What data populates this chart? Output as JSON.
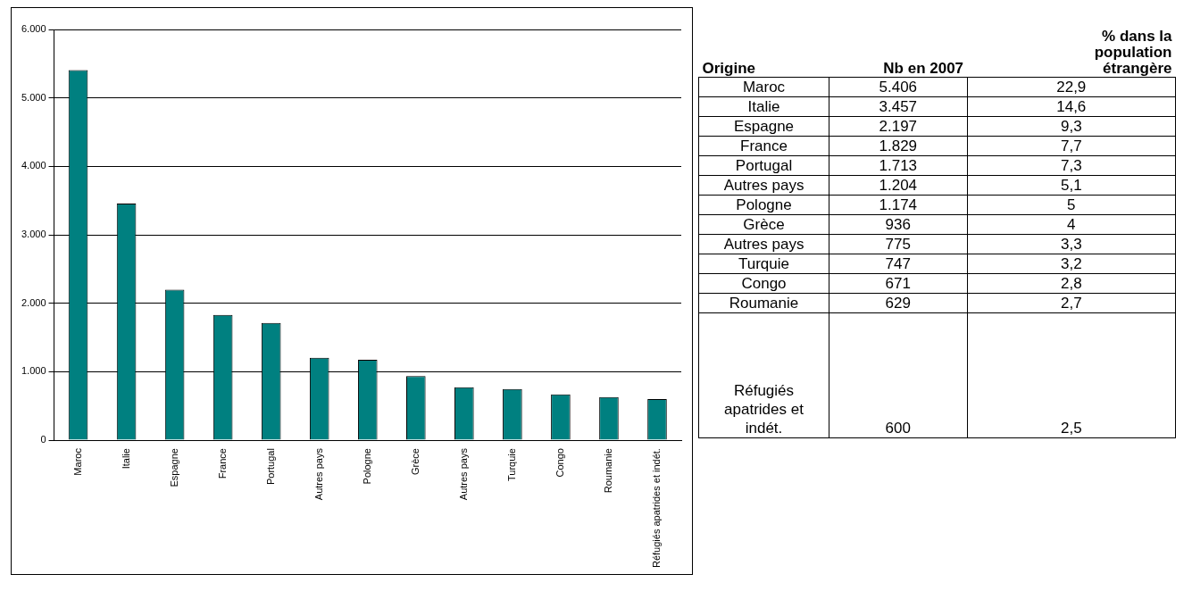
{
  "chart_data": [
    {
      "type": "bar",
      "categories": [
        "Maroc",
        "Italie",
        "Espagne",
        "France",
        "Portugal",
        "Autres pays",
        "Pologne",
        "Grèce",
        "Autres pays",
        "Turquie",
        "Congo",
        "Roumanie",
        "Réfugiés apatrides et indét."
      ],
      "values": [
        5406,
        3457,
        2197,
        1829,
        1713,
        1204,
        1174,
        936,
        775,
        747,
        671,
        629,
        600
      ],
      "color": "#008080",
      "ylim": [
        0,
        6000
      ],
      "yticks": [
        {
          "value": 0,
          "label": "0"
        },
        {
          "value": 1000,
          "label": "1.000"
        },
        {
          "value": 2000,
          "label": "2.000"
        },
        {
          "value": 3000,
          "label": "3.000"
        },
        {
          "value": 4000,
          "label": "4.000"
        },
        {
          "value": 5000,
          "label": "5.000"
        },
        {
          "value": 6000,
          "label": "6.000"
        }
      ],
      "grid": "y",
      "legend": false
    },
    {
      "type": "other",
      "xlabel": "Origine",
      "categories": [
        "Maroc",
        "Italie",
        "Espagne",
        "France",
        "Portugal",
        "Autres pays",
        "Pologne",
        "Grèce",
        "Autres pays",
        "Turquie",
        "Congo",
        "Roumanie",
        "Réfugiés apatrides et indét."
      ],
      "series": [
        {
          "name": "Nb en 2007",
          "values": [
            5406,
            3457,
            2197,
            1829,
            1713,
            1204,
            1174,
            936,
            775,
            747,
            671,
            629,
            600
          ],
          "value_labels": [
            "5.406",
            "3.457",
            "2.197",
            "1.829",
            "1.713",
            "1.204",
            "1.174",
            "936",
            "775",
            "747",
            "671",
            "629",
            "600"
          ]
        },
        {
          "name": "% dans la population étrangère",
          "values": [
            22.9,
            14.6,
            9.3,
            7.7,
            7.3,
            5.1,
            5,
            4,
            3.3,
            3.2,
            2.8,
            2.7,
            2.5
          ],
          "value_labels": [
            "22,9",
            "14,6",
            "9,3",
            "7,7",
            "7,3",
            "5,1",
            "5",
            "4",
            "3,3",
            "3,2",
            "2,8",
            "2,7",
            "2,5"
          ]
        }
      ],
      "data_labels": true
    }
  ]
}
